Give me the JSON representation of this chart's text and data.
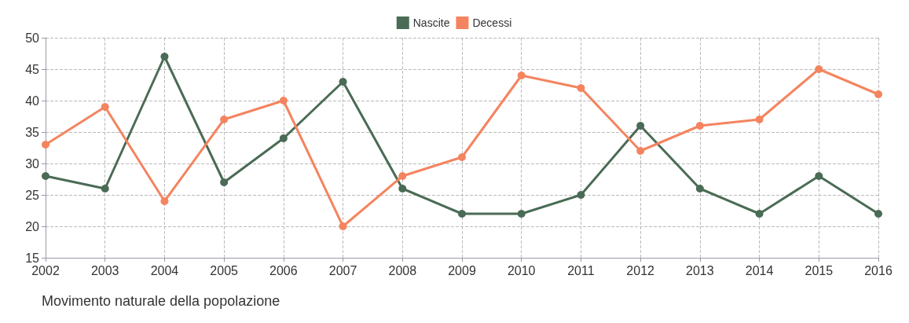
{
  "chart_data": {
    "type": "line",
    "title": "Movimento naturale della popolazione",
    "categories": [
      "2002",
      "2003",
      "2004",
      "2005",
      "2006",
      "2007",
      "2008",
      "2009",
      "2010",
      "2011",
      "2012",
      "2013",
      "2014",
      "2015",
      "2016"
    ],
    "series": [
      {
        "name": "Nascite",
        "color": "#4a6b55",
        "values": [
          28,
          26,
          47,
          27,
          34,
          43,
          26,
          22,
          22,
          25,
          36,
          26,
          22,
          28,
          22
        ]
      },
      {
        "name": "Decessi",
        "color": "#f4845f",
        "values": [
          33,
          39,
          24,
          37,
          40,
          20,
          28,
          31,
          44,
          42,
          32,
          36,
          37,
          45,
          41
        ]
      }
    ],
    "ylim": [
      15,
      50
    ],
    "yticks": [
      15,
      20,
      25,
      30,
      35,
      40,
      45,
      50
    ],
    "grid": true,
    "legend": "top",
    "marker": "circle",
    "line_style": "solid"
  }
}
